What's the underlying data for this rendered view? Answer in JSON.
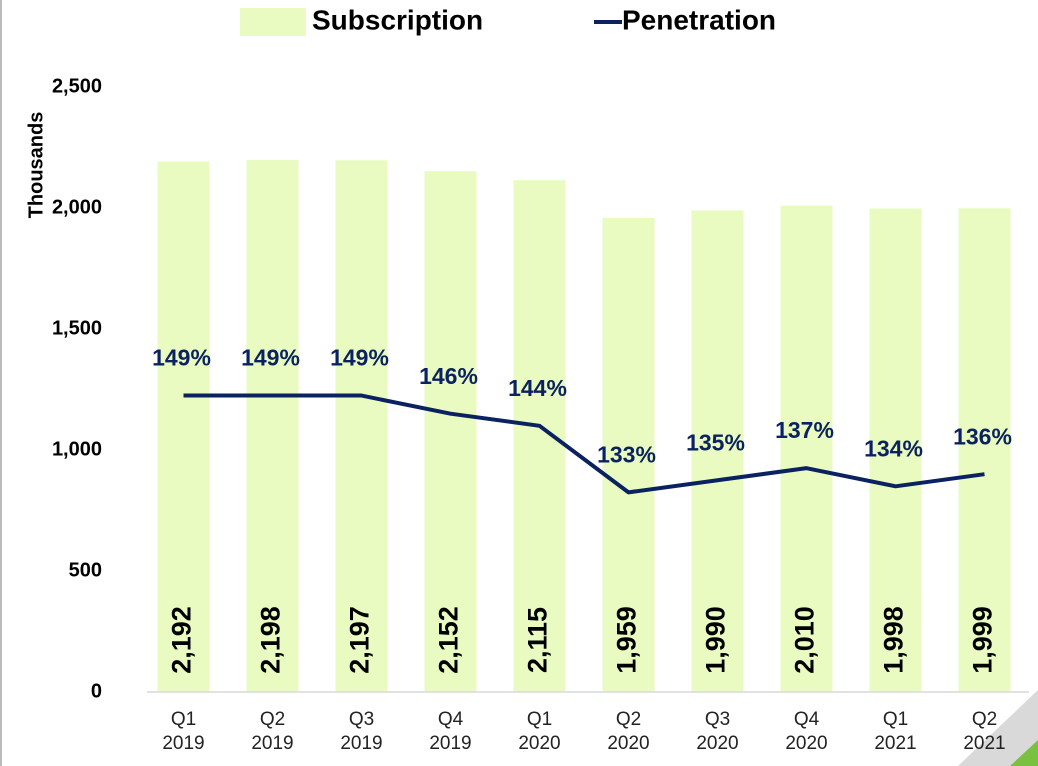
{
  "chart_data": {
    "type": "bar-line",
    "categories": [
      [
        "Q1",
        "2019"
      ],
      [
        "Q2",
        "2019"
      ],
      [
        "Q3",
        "2019"
      ],
      [
        "Q4",
        "2019"
      ],
      [
        "Q1",
        "2020"
      ],
      [
        "Q2",
        "2020"
      ],
      [
        "Q3",
        "2020"
      ],
      [
        "Q4",
        "2020"
      ],
      [
        "Q1",
        "2021"
      ],
      [
        "Q2",
        "2021"
      ]
    ],
    "y_label": "Thousands",
    "ylim": [
      0,
      2500
    ],
    "yticks": [
      0,
      500,
      {
        "value": 1000,
        "label": "1,000"
      },
      {
        "value": 1500,
        "label": "1,500"
      },
      {
        "value": 2000,
        "label": "2,000"
      },
      {
        "value": 2500,
        "label": "2,500"
      }
    ],
    "y2lim": [
      100,
      200
    ],
    "series": [
      {
        "name": "Subscription",
        "type": "bar",
        "color": "#e9fbc0",
        "values": [
          2192,
          2198,
          2197,
          2152,
          2115,
          1959,
          1990,
          2010,
          1998,
          1999
        ],
        "value_labels": [
          "2,192",
          "2,198",
          "2,197",
          "2,152",
          "2,115",
          "1,959",
          "1,990",
          "2,010",
          "1,998",
          "1,999"
        ]
      },
      {
        "name": "Penetration",
        "type": "line",
        "axis": "y2",
        "color": "#0b2260",
        "values": [
          149,
          149,
          149,
          146,
          144,
          133,
          135,
          137,
          134,
          136
        ],
        "value_labels": [
          "149%",
          "149%",
          "149%",
          "146%",
          "144%",
          "133%",
          "135%",
          "137%",
          "134%",
          "136%"
        ]
      }
    ]
  }
}
